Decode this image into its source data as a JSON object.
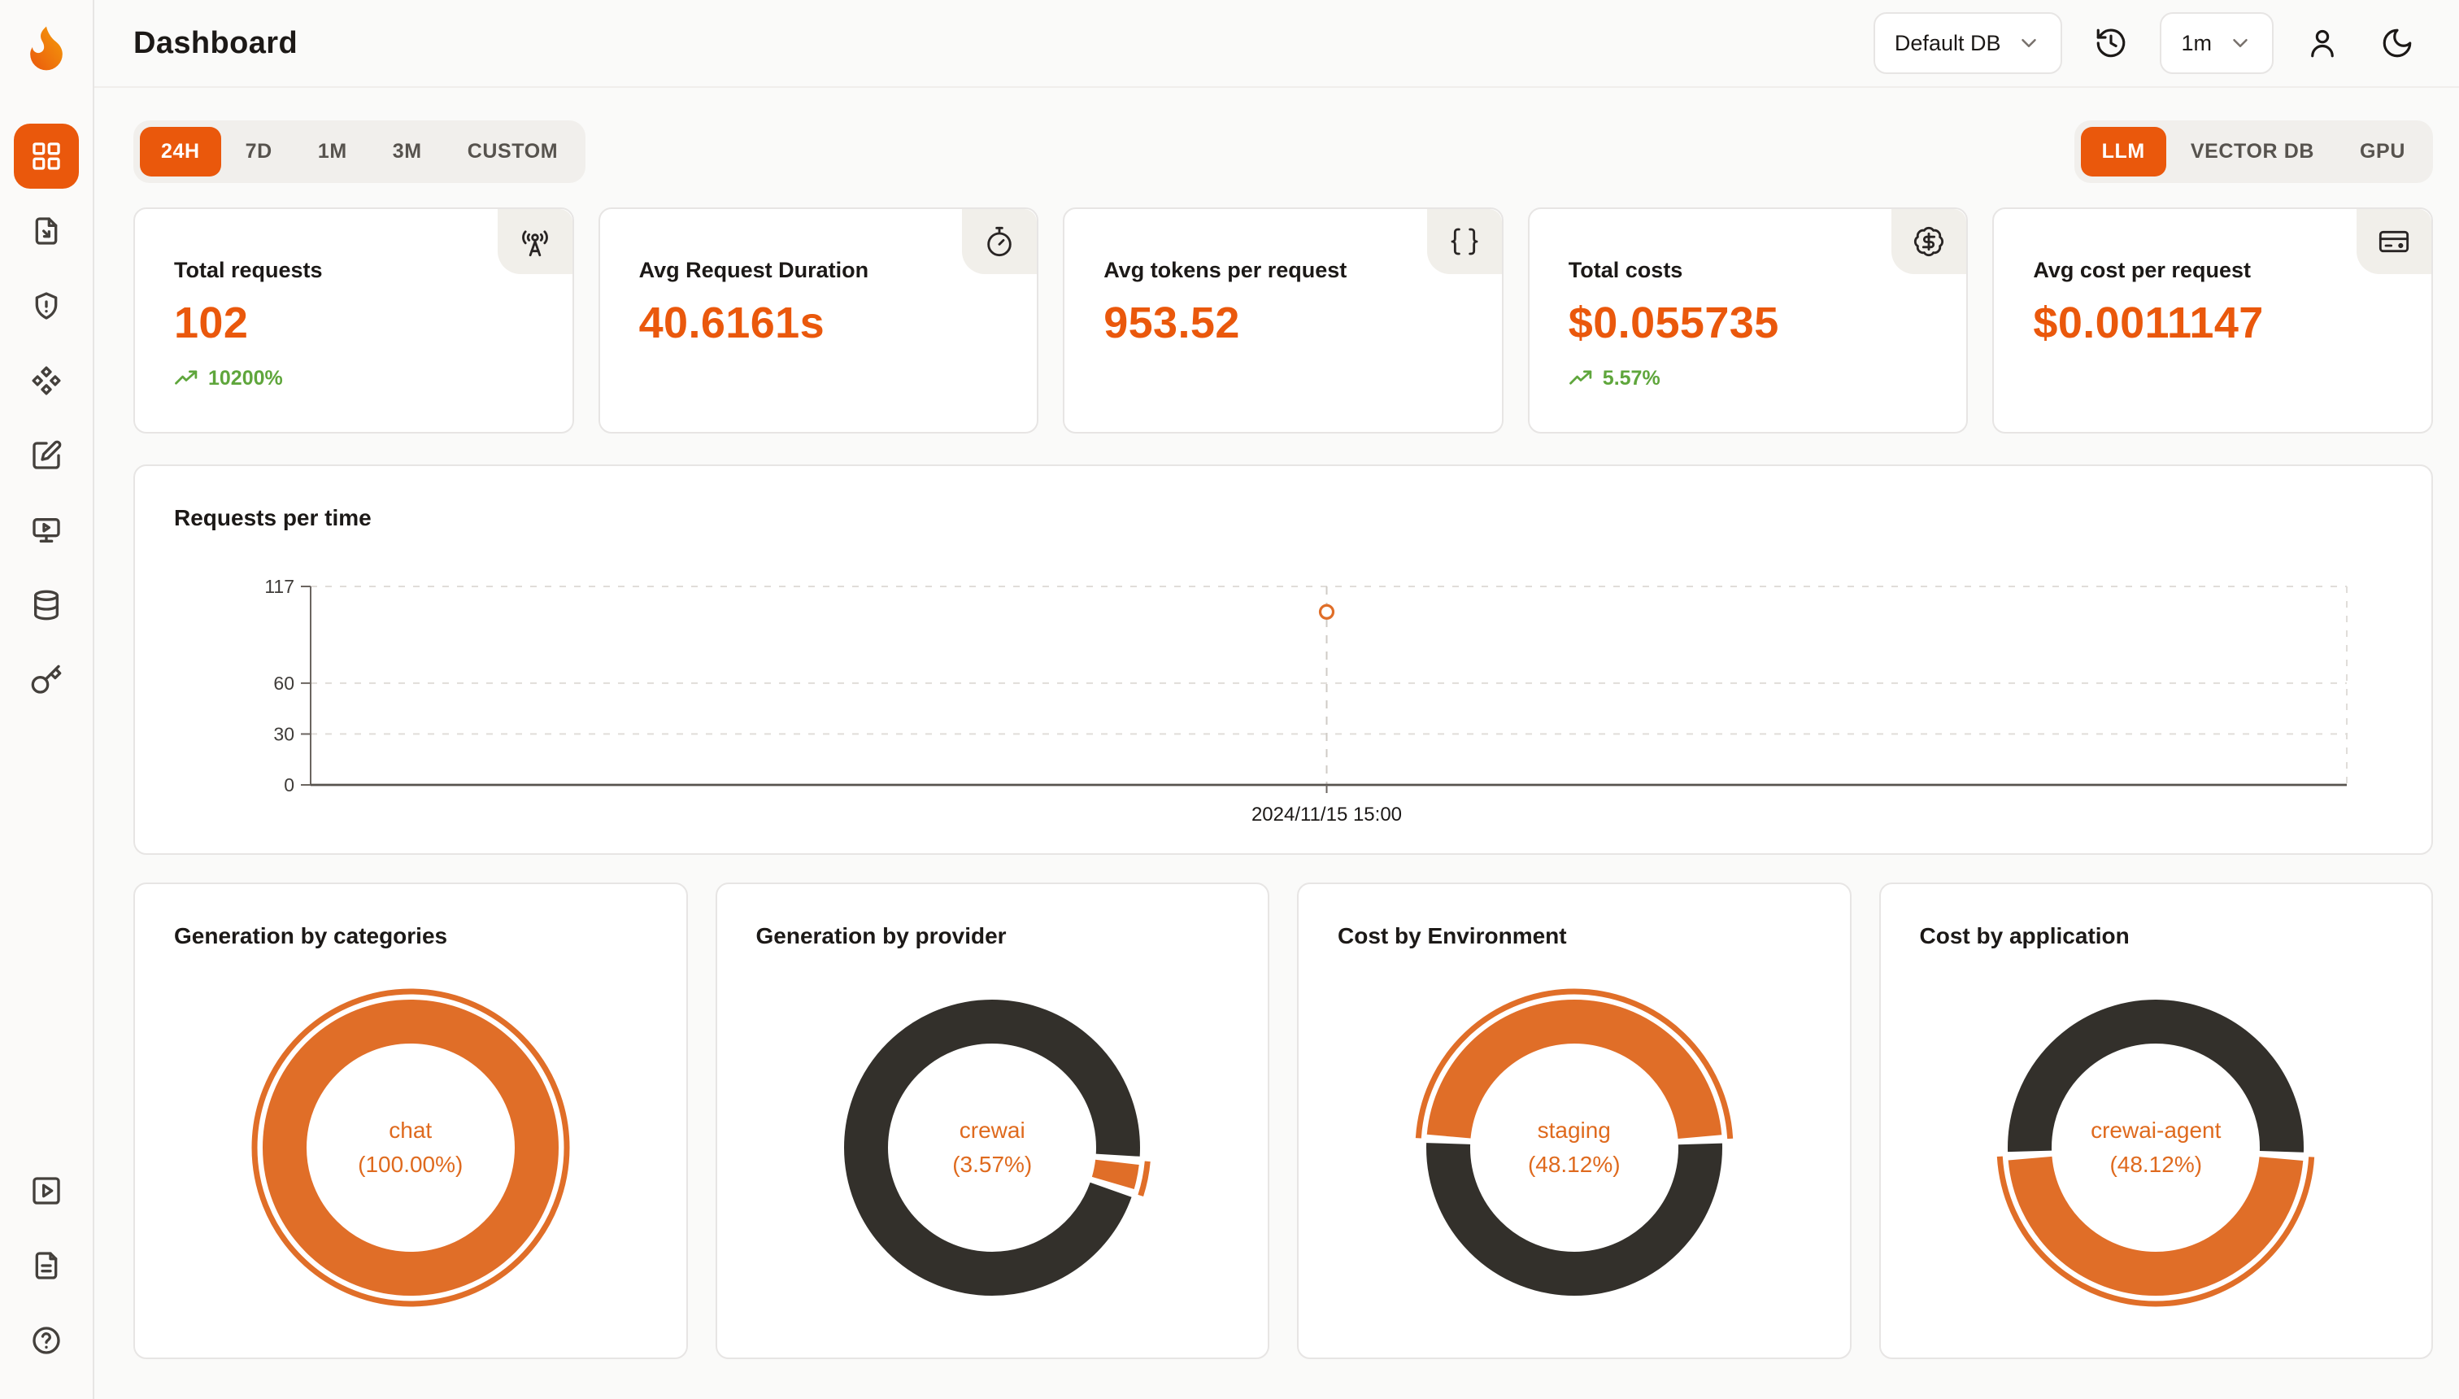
{
  "colors": {
    "accent": "#EA580C",
    "donut_orange": "#E06E28",
    "donut_dark": "#33302B",
    "positive": "#5FA63C",
    "page_bg": "#FAFAF9",
    "card_border": "#E7E5E4"
  },
  "header": {
    "title": "Dashboard",
    "database_select": {
      "value": "Default DB"
    },
    "interval_select": {
      "value": "1m"
    }
  },
  "sidebar": {
    "items": [
      {
        "id": "dashboard",
        "icon": "dashboard-grid-icon",
        "active": true
      },
      {
        "id": "requests",
        "icon": "file-export-icon",
        "active": false
      },
      {
        "id": "exceptions",
        "icon": "shield-alert-icon",
        "active": false
      },
      {
        "id": "prompt-hub",
        "icon": "diamonds-icon",
        "active": false
      },
      {
        "id": "vault",
        "icon": "square-pen-icon",
        "active": false
      },
      {
        "id": "playground",
        "icon": "monitor-play-icon",
        "active": false
      },
      {
        "id": "databases",
        "icon": "database-icon",
        "active": false
      },
      {
        "id": "api-keys",
        "icon": "key-icon",
        "active": false
      }
    ],
    "footer_items": [
      {
        "id": "getting-started",
        "icon": "square-play-icon"
      },
      {
        "id": "documentation",
        "icon": "file-text-icon"
      },
      {
        "id": "support",
        "icon": "circle-help-icon"
      }
    ]
  },
  "time_tabs": [
    "24H",
    "7D",
    "1M",
    "3M",
    "CUSTOM"
  ],
  "time_tabs_active": "24H",
  "source_tabs": [
    "LLM",
    "VECTOR DB",
    "GPU"
  ],
  "source_tabs_active": "LLM",
  "stats": [
    {
      "label": "Total requests",
      "value": "102",
      "delta": "10200%",
      "icon": "radio-tower-icon"
    },
    {
      "label": "Avg Request Duration",
      "value": "40.6161s",
      "delta": "",
      "icon": "timer-icon"
    },
    {
      "label": "Avg tokens per request",
      "value": "953.52",
      "delta": "",
      "icon": "braces-icon"
    },
    {
      "label": "Total costs",
      "value": "$0.055735",
      "delta": "5.57%",
      "icon": "badge-dollar-icon"
    },
    {
      "label": "Avg cost per request",
      "value": "$0.0011147",
      "delta": "",
      "icon": "credit-card-icon"
    }
  ],
  "chart_data": [
    {
      "type": "line",
      "title": "Requests per time",
      "x": [
        "2024/11/15 15:00"
      ],
      "series": [
        {
          "name": "requests",
          "values": [
            102
          ]
        }
      ],
      "ylim": [
        0,
        117
      ],
      "yticks": [
        0,
        30,
        60,
        117
      ],
      "grid": "dashed",
      "legend": false,
      "marker": {
        "x": "2024/11/15 15:00",
        "value": 102
      }
    },
    {
      "type": "pie",
      "title": "Generation by categories",
      "center_label": [
        "chat",
        "(100.00%)"
      ],
      "start_deg": 0,
      "slices": [
        {
          "name": "chat",
          "value": 100.0,
          "color": "orange"
        }
      ]
    },
    {
      "type": "pie",
      "title": "Generation by provider",
      "center_label": [
        "crewai",
        "(3.57%)"
      ],
      "start_deg": 95,
      "slices": [
        {
          "name": "crewai",
          "value": 3.57,
          "color": "orange"
        },
        {
          "name": "",
          "value": 96.43,
          "color": "dark"
        }
      ]
    },
    {
      "type": "pie",
      "title": "Cost by Environment",
      "center_label": [
        "staging",
        "(48.12%)"
      ],
      "start_deg": -86.6,
      "slices": [
        {
          "name": "staging",
          "value": 48.12,
          "color": "orange"
        },
        {
          "name": "",
          "value": 51.88,
          "color": "dark"
        }
      ]
    },
    {
      "type": "pie",
      "title": "Cost by application",
      "center_label": [
        "crewai-agent",
        "(48.12%)"
      ],
      "start_deg": 93.4,
      "slices": [
        {
          "name": "crewai-agent",
          "value": 48.12,
          "color": "orange"
        },
        {
          "name": "",
          "value": 51.88,
          "color": "dark"
        }
      ]
    }
  ]
}
